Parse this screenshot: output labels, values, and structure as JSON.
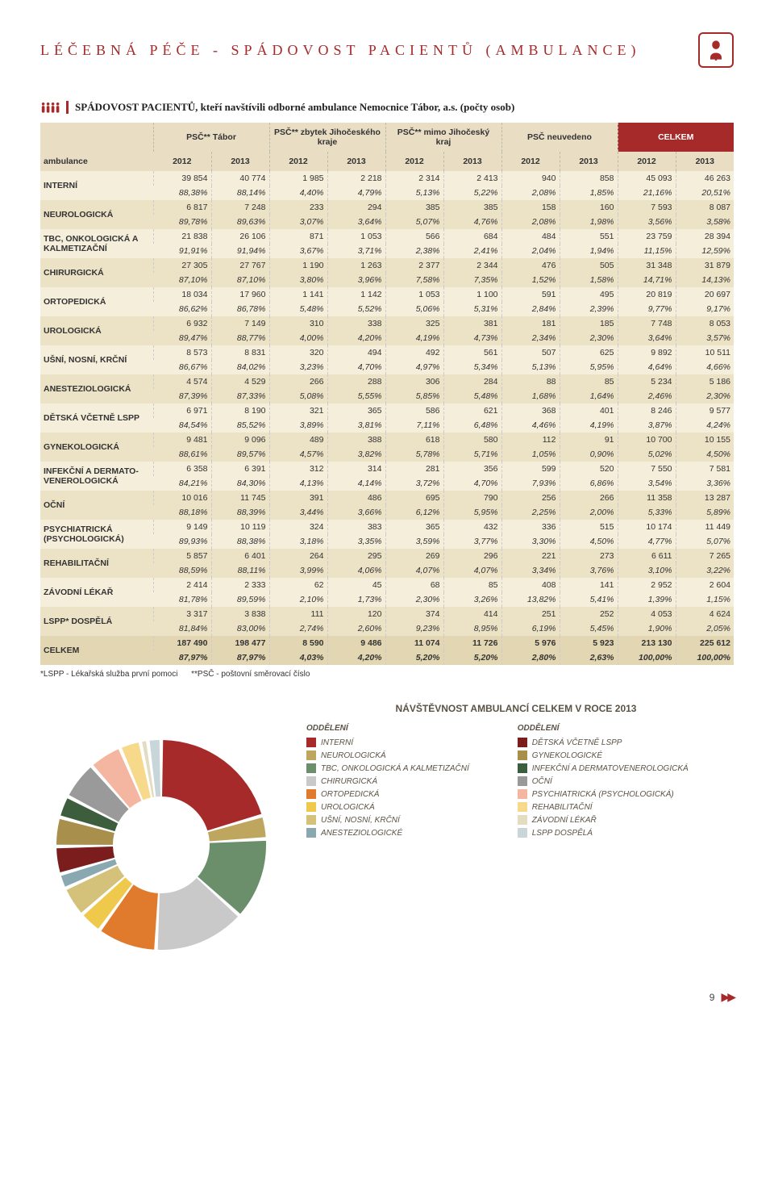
{
  "header": {
    "title": "LÉČEBNÁ PÉČE - SPÁDOVOST PACIENTŮ (AMBULANCE)",
    "subtitle": "SPÁDOVOST PACIENTŮ, kteří navštívili odborné ambulance Nemocnice Tábor, a.s. (počty osob)"
  },
  "table": {
    "corner": "ambulance",
    "groups": [
      "PSČ** Tábor",
      "PSČ** zbytek Jihočeského kraje",
      "PSČ** mimo Jihočeský kraj",
      "PSČ neuvedeno",
      "CELKEM"
    ],
    "years": [
      "2012",
      "2013",
      "2012",
      "2013",
      "2012",
      "2013",
      "2012",
      "2013",
      "2012",
      "2013"
    ],
    "rows": [
      {
        "label": "INTERNÍ",
        "c": [
          "39 854",
          "40 774",
          "1 985",
          "2 218",
          "2 314",
          "2 413",
          "940",
          "858",
          "45 093",
          "46 263"
        ],
        "p": [
          "88,38%",
          "88,14%",
          "4,40%",
          "4,79%",
          "5,13%",
          "5,22%",
          "2,08%",
          "1,85%",
          "21,16%",
          "20,51%"
        ]
      },
      {
        "label": "NEUROLOGICKÁ",
        "c": [
          "6 817",
          "7 248",
          "233",
          "294",
          "385",
          "385",
          "158",
          "160",
          "7 593",
          "8 087"
        ],
        "p": [
          "89,78%",
          "89,63%",
          "3,07%",
          "3,64%",
          "5,07%",
          "4,76%",
          "2,08%",
          "1,98%",
          "3,56%",
          "3,58%"
        ]
      },
      {
        "label": "TBC, ONKOLOGICKÁ A KALMETIZAČNÍ",
        "c": [
          "21 838",
          "26 106",
          "871",
          "1 053",
          "566",
          "684",
          "484",
          "551",
          "23 759",
          "28 394"
        ],
        "p": [
          "91,91%",
          "91,94%",
          "3,67%",
          "3,71%",
          "2,38%",
          "2,41%",
          "2,04%",
          "1,94%",
          "11,15%",
          "12,59%"
        ]
      },
      {
        "label": "CHIRURGICKÁ",
        "c": [
          "27 305",
          "27 767",
          "1 190",
          "1 263",
          "2 377",
          "2 344",
          "476",
          "505",
          "31 348",
          "31 879"
        ],
        "p": [
          "87,10%",
          "87,10%",
          "3,80%",
          "3,96%",
          "7,58%",
          "7,35%",
          "1,52%",
          "1,58%",
          "14,71%",
          "14,13%"
        ]
      },
      {
        "label": "ORTOPEDICKÁ",
        "c": [
          "18 034",
          "17 960",
          "1 141",
          "1 142",
          "1 053",
          "1 100",
          "591",
          "495",
          "20 819",
          "20 697"
        ],
        "p": [
          "86,62%",
          "86,78%",
          "5,48%",
          "5,52%",
          "5,06%",
          "5,31%",
          "2,84%",
          "2,39%",
          "9,77%",
          "9,17%"
        ]
      },
      {
        "label": "UROLOGICKÁ",
        "c": [
          "6 932",
          "7 149",
          "310",
          "338",
          "325",
          "381",
          "181",
          "185",
          "7 748",
          "8 053"
        ],
        "p": [
          "89,47%",
          "88,77%",
          "4,00%",
          "4,20%",
          "4,19%",
          "4,73%",
          "2,34%",
          "2,30%",
          "3,64%",
          "3,57%"
        ]
      },
      {
        "label": "UŠNÍ, NOSNÍ, KRČNÍ",
        "c": [
          "8 573",
          "8 831",
          "320",
          "494",
          "492",
          "561",
          "507",
          "625",
          "9 892",
          "10 511"
        ],
        "p": [
          "86,67%",
          "84,02%",
          "3,23%",
          "4,70%",
          "4,97%",
          "5,34%",
          "5,13%",
          "5,95%",
          "4,64%",
          "4,66%"
        ]
      },
      {
        "label": "ANESTEZIOLOGICKÁ",
        "c": [
          "4 574",
          "4 529",
          "266",
          "288",
          "306",
          "284",
          "88",
          "85",
          "5 234",
          "5 186"
        ],
        "p": [
          "87,39%",
          "87,33%",
          "5,08%",
          "5,55%",
          "5,85%",
          "5,48%",
          "1,68%",
          "1,64%",
          "2,46%",
          "2,30%"
        ]
      },
      {
        "label": "DĚTSKÁ VČETNĚ LSPP",
        "c": [
          "6 971",
          "8 190",
          "321",
          "365",
          "586",
          "621",
          "368",
          "401",
          "8 246",
          "9 577"
        ],
        "p": [
          "84,54%",
          "85,52%",
          "3,89%",
          "3,81%",
          "7,11%",
          "6,48%",
          "4,46%",
          "4,19%",
          "3,87%",
          "4,24%"
        ]
      },
      {
        "label": "GYNEKOLOGICKÁ",
        "c": [
          "9 481",
          "9 096",
          "489",
          "388",
          "618",
          "580",
          "112",
          "91",
          "10 700",
          "10 155"
        ],
        "p": [
          "88,61%",
          "89,57%",
          "4,57%",
          "3,82%",
          "5,78%",
          "5,71%",
          "1,05%",
          "0,90%",
          "5,02%",
          "4,50%"
        ]
      },
      {
        "label": "INFEKČNÍ A DERMATO-VENEROLOGICKÁ",
        "c": [
          "6 358",
          "6 391",
          "312",
          "314",
          "281",
          "356",
          "599",
          "520",
          "7 550",
          "7 581"
        ],
        "p": [
          "84,21%",
          "84,30%",
          "4,13%",
          "4,14%",
          "3,72%",
          "4,70%",
          "7,93%",
          "6,86%",
          "3,54%",
          "3,36%"
        ]
      },
      {
        "label": "OČNÍ",
        "c": [
          "10 016",
          "11 745",
          "391",
          "486",
          "695",
          "790",
          "256",
          "266",
          "11 358",
          "13 287"
        ],
        "p": [
          "88,18%",
          "88,39%",
          "3,44%",
          "3,66%",
          "6,12%",
          "5,95%",
          "2,25%",
          "2,00%",
          "5,33%",
          "5,89%"
        ]
      },
      {
        "label": "PSYCHIATRICKÁ (PSYCHOLOGICKÁ)",
        "c": [
          "9 149",
          "10 119",
          "324",
          "383",
          "365",
          "432",
          "336",
          "515",
          "10 174",
          "11 449"
        ],
        "p": [
          "89,93%",
          "88,38%",
          "3,18%",
          "3,35%",
          "3,59%",
          "3,77%",
          "3,30%",
          "4,50%",
          "4,77%",
          "5,07%"
        ]
      },
      {
        "label": "REHABILITAČNÍ",
        "c": [
          "5 857",
          "6 401",
          "264",
          "295",
          "269",
          "296",
          "221",
          "273",
          "6 611",
          "7 265"
        ],
        "p": [
          "88,59%",
          "88,11%",
          "3,99%",
          "4,06%",
          "4,07%",
          "4,07%",
          "3,34%",
          "3,76%",
          "3,10%",
          "3,22%"
        ]
      },
      {
        "label": "ZÁVODNÍ LÉKAŘ",
        "c": [
          "2 414",
          "2 333",
          "62",
          "45",
          "68",
          "85",
          "408",
          "141",
          "2 952",
          "2 604"
        ],
        "p": [
          "81,78%",
          "89,59%",
          "2,10%",
          "1,73%",
          "2,30%",
          "3,26%",
          "13,82%",
          "5,41%",
          "1,39%",
          "1,15%"
        ]
      },
      {
        "label": "LSPP* DOSPĚLÁ",
        "c": [
          "3 317",
          "3 838",
          "111",
          "120",
          "374",
          "414",
          "251",
          "252",
          "4 053",
          "4 624"
        ],
        "p": [
          "81,84%",
          "83,00%",
          "2,74%",
          "2,60%",
          "9,23%",
          "8,95%",
          "6,19%",
          "5,45%",
          "1,90%",
          "2,05%"
        ]
      }
    ],
    "total": {
      "label": "CELKEM",
      "c": [
        "187 490",
        "198 477",
        "8 590",
        "9 486",
        "11 074",
        "11 726",
        "5 976",
        "5 923",
        "213 130",
        "225 612"
      ],
      "p": [
        "87,97%",
        "87,97%",
        "4,03%",
        "4,20%",
        "5,20%",
        "5,20%",
        "2,80%",
        "2,63%",
        "100,00%",
        "100,00%"
      ]
    }
  },
  "footnote": {
    "lspp": "*LSPP - Lékařská služba první pomoci",
    "psc": "**PSČ - poštovní směrovací číslo"
  },
  "chart": {
    "title": "NÁVŠTĚVNOST AMBULANCÍ CELKEM V ROCE 2013",
    "legend_head": "ODDĚLENÍ",
    "type": "donut",
    "background_color": "#ffffff",
    "inner_radius": 60,
    "outer_radius": 130,
    "gap_deg": 2,
    "items": [
      {
        "label": "INTERNÍ",
        "value": 46263,
        "color": "#a62a2a"
      },
      {
        "label": "NEUROLOGICKÁ",
        "value": 8087,
        "color": "#bfa65e"
      },
      {
        "label": "TBC, ONKOLOGICKÁ  A KALMETIZAČNÍ",
        "value": 28394,
        "color": "#6b8e6b"
      },
      {
        "label": "CHIRURGICKÁ",
        "value": 31879,
        "color": "#c9c9c9"
      },
      {
        "label": "ORTOPEDICKÁ",
        "value": 20697,
        "color": "#e07a2c"
      },
      {
        "label": "UROLOGICKÁ",
        "value": 8053,
        "color": "#efc94c"
      },
      {
        "label": "UŠNÍ, NOSNÍ, KRČNÍ",
        "value": 10511,
        "color": "#d4c27a"
      },
      {
        "label": "ANESTEZIOLOGICKÉ",
        "value": 5186,
        "color": "#8aa8b0"
      },
      {
        "label": "DĚTSKÁ VČETNĚ LSPP",
        "value": 9577,
        "color": "#7c1d1d"
      },
      {
        "label": "GYNEKOLOGICKÉ",
        "value": 10155,
        "color": "#a88f4c"
      },
      {
        "label": "INFEKČNÍ A DERMATOVENEROLOGICKÁ",
        "value": 7581,
        "color": "#3d5e3d"
      },
      {
        "label": "OČNÍ",
        "value": 13287,
        "color": "#9a9a9a"
      },
      {
        "label": "PSYCHIATRICKÁ (PSYCHOLOGICKÁ)",
        "value": 11449,
        "color": "#f4b6a0"
      },
      {
        "label": "REHABILITAČNÍ",
        "value": 7265,
        "color": "#f6d98a"
      },
      {
        "label": "ZÁVODNÍ LÉKAŘ",
        "value": 2604,
        "color": "#e4dcc0"
      },
      {
        "label": "LSPP DOSPĚLÁ",
        "value": 4624,
        "color": "#c9d6d9"
      }
    ]
  },
  "footer": {
    "page": "9"
  }
}
